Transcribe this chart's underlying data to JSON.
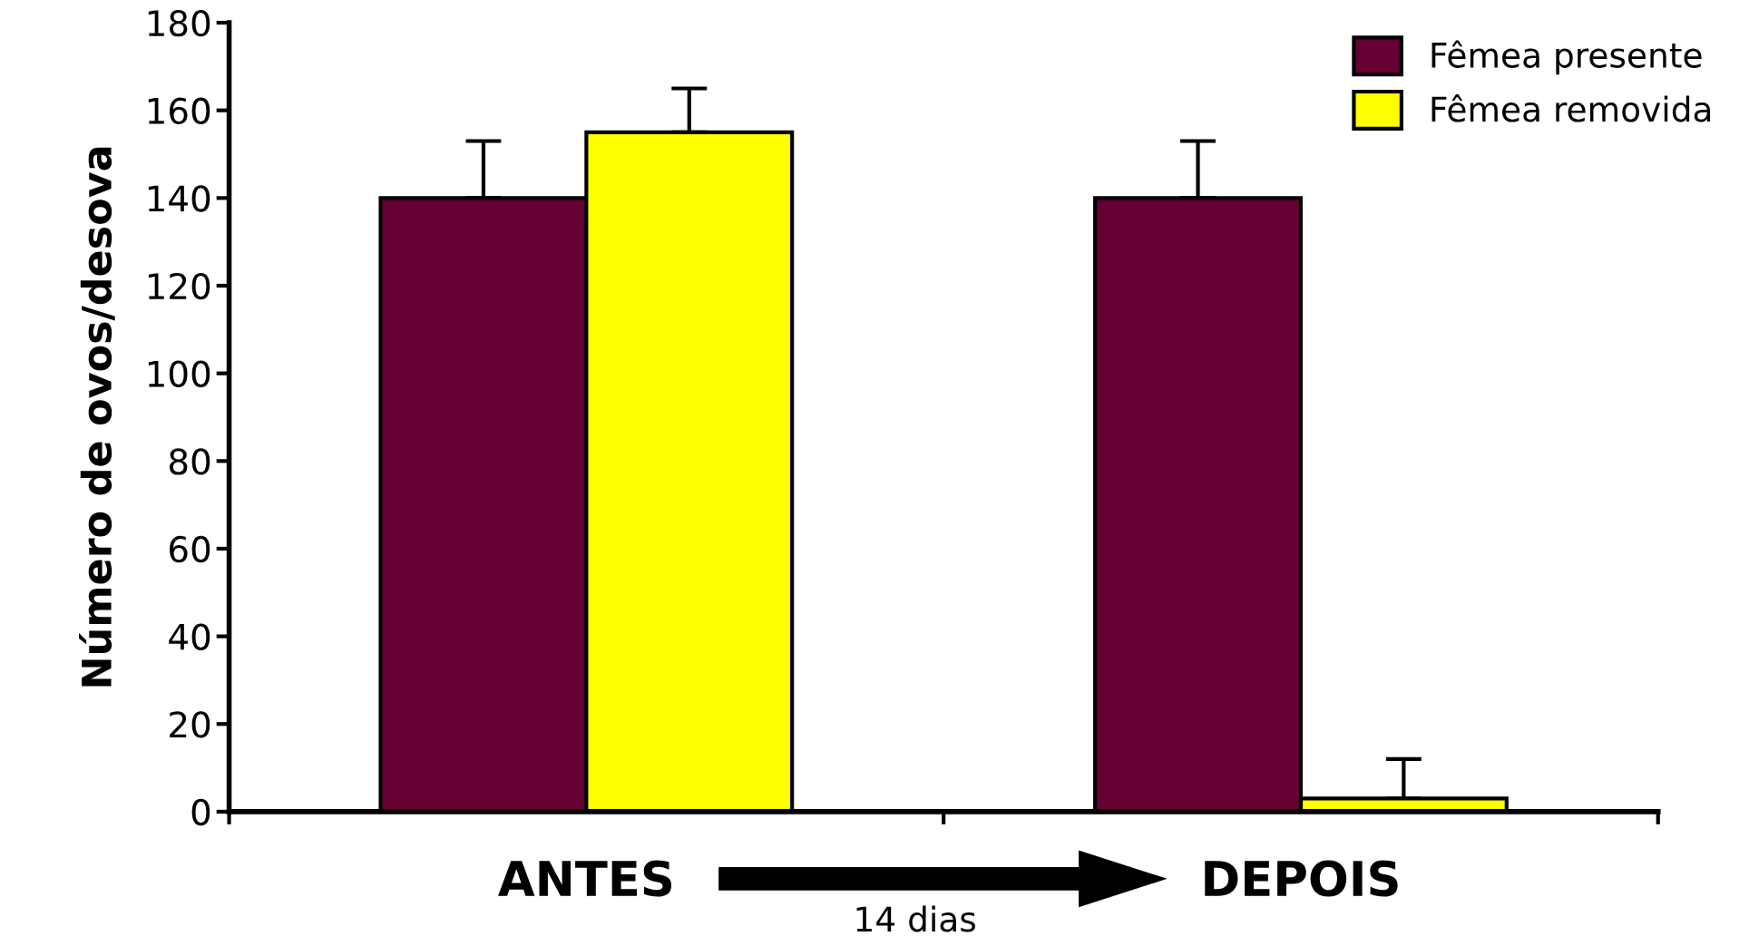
{
  "chart_data": {
    "type": "bar",
    "ylabel": "Número de ovos/desova",
    "categories": [
      "ANTES",
      "DEPOIS"
    ],
    "series": [
      {
        "name": "Fêmea presente",
        "color": "#660033",
        "values": [
          140,
          140
        ],
        "errors": [
          [
            140,
            153
          ],
          [
            140,
            153
          ]
        ]
      },
      {
        "name": "Fêmea removida",
        "color": "#ffff00",
        "values": [
          155,
          3
        ],
        "errors": [
          [
            155,
            165
          ],
          [
            3,
            12
          ]
        ]
      }
    ],
    "ylim": [
      0,
      180
    ],
    "yticks": [
      0,
      20,
      40,
      60,
      80,
      100,
      120,
      140,
      160,
      180
    ],
    "grid": false,
    "legend": "top right",
    "annotations": [
      "14 dias"
    ]
  }
}
